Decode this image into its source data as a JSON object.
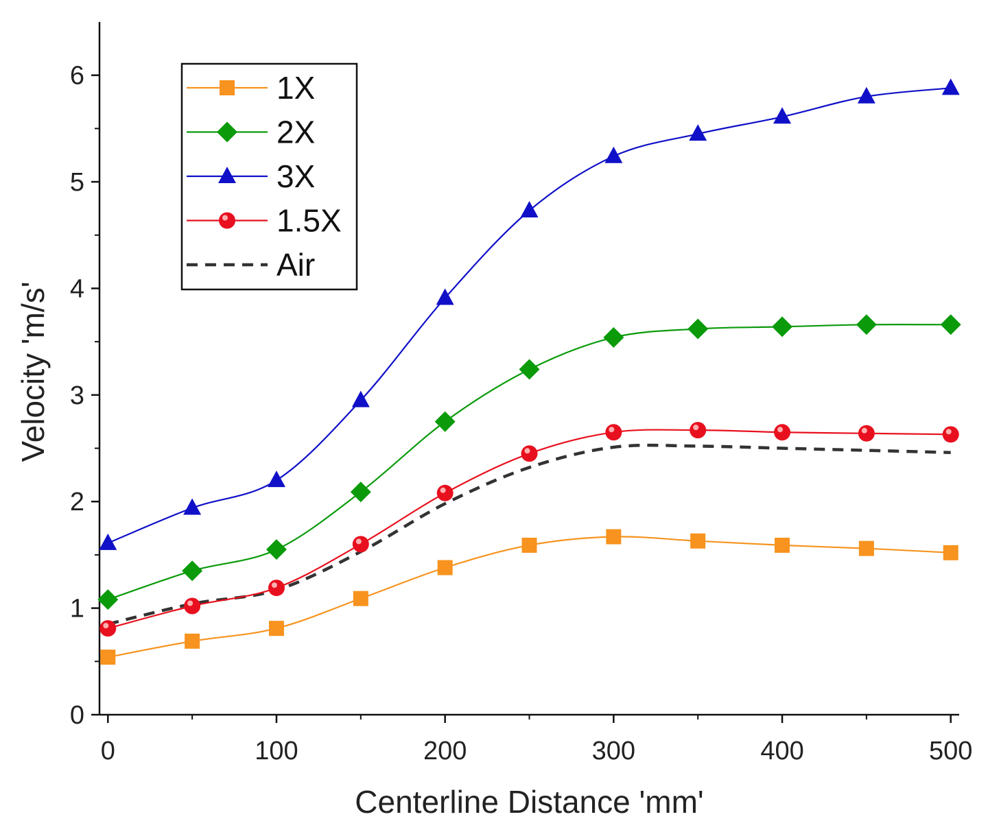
{
  "chart_data": {
    "type": "line",
    "title": "",
    "xlabel": "Centerline Distance 'mm'",
    "ylabel": "Velocity 'm/s'",
    "xlim": [
      -5,
      505
    ],
    "ylim": [
      0,
      6.5
    ],
    "xticks": [
      0,
      100,
      200,
      300,
      400,
      500
    ],
    "yticks": [
      0,
      1,
      2,
      3,
      4,
      5,
      6
    ],
    "grid": false,
    "legend_position": "top-left",
    "x": [
      0,
      50,
      100,
      150,
      200,
      250,
      300,
      350,
      400,
      450,
      500
    ],
    "series": [
      {
        "name": "1X",
        "color": "#f7931e",
        "marker": "square",
        "dashed": false,
        "values": [
          0.54,
          0.69,
          0.81,
          1.09,
          1.38,
          1.59,
          1.67,
          1.63,
          1.59,
          1.56,
          1.52
        ]
      },
      {
        "name": "2X",
        "color": "#0a9a0a",
        "marker": "diamond",
        "dashed": false,
        "values": [
          1.08,
          1.35,
          1.55,
          2.09,
          2.75,
          3.24,
          3.54,
          3.62,
          3.64,
          3.66,
          3.66
        ]
      },
      {
        "name": "3X",
        "color": "#1010c8",
        "marker": "triangle",
        "dashed": false,
        "values": [
          1.61,
          1.94,
          2.2,
          2.95,
          3.91,
          4.73,
          5.24,
          5.45,
          5.61,
          5.8,
          5.88
        ]
      },
      {
        "name": "1.5X",
        "color": "#e8101e",
        "marker": "circle",
        "dashed": false,
        "values": [
          0.81,
          1.02,
          1.19,
          1.6,
          2.08,
          2.45,
          2.65,
          2.67,
          2.65,
          2.64,
          2.63
        ]
      },
      {
        "name": "Air",
        "color": "#333333",
        "marker": "none",
        "dashed": true,
        "values": [
          0.85,
          1.04,
          1.17,
          1.53,
          1.98,
          2.32,
          2.51,
          2.52,
          2.5,
          2.48,
          2.46
        ]
      }
    ]
  }
}
